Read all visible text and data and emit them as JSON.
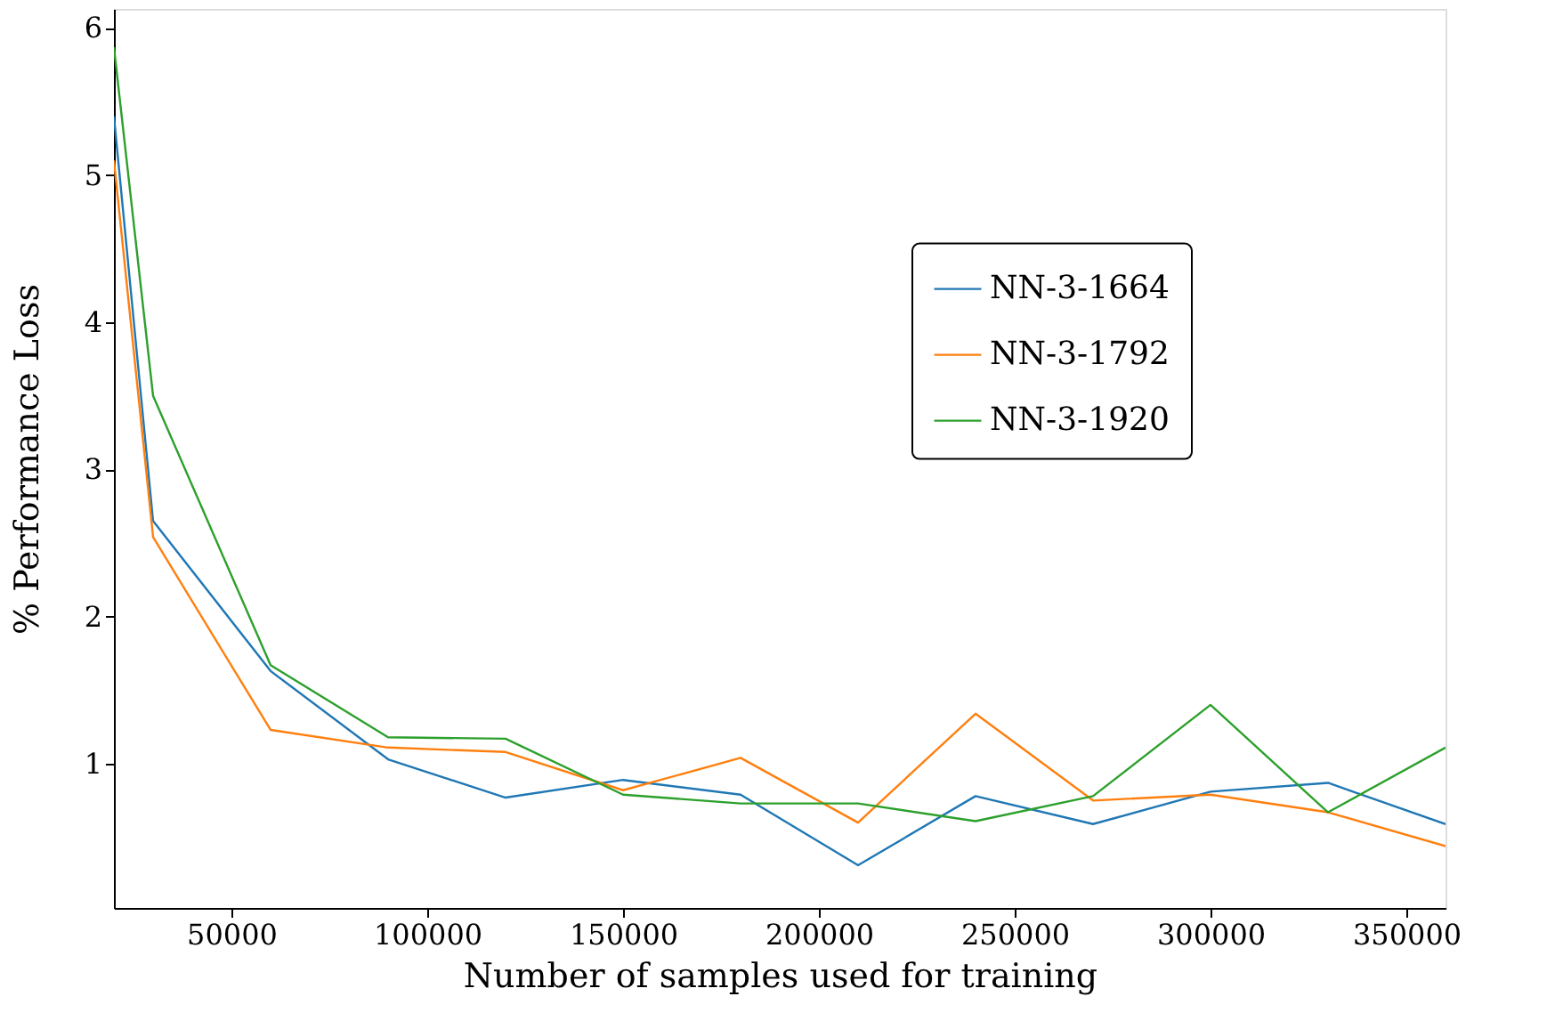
{
  "chart_data": {
    "type": "line",
    "xlabel": "Number of samples used for training",
    "ylabel": "% Performance Loss",
    "x": [
      20000,
      30000,
      60000,
      90000,
      120000,
      150000,
      180000,
      210000,
      240000,
      270000,
      300000,
      330000,
      360000
    ],
    "series": [
      {
        "name": "NN-3-1664",
        "color": "#1f77b4",
        "values": [
          5.4,
          2.65,
          1.63,
          1.03,
          0.77,
          0.89,
          0.79,
          0.31,
          0.78,
          0.59,
          0.81,
          0.87,
          0.59
        ]
      },
      {
        "name": "NN-3-1792",
        "color": "#ff7f0e",
        "values": [
          5.1,
          2.54,
          1.23,
          1.11,
          1.08,
          0.82,
          1.04,
          0.6,
          1.34,
          0.75,
          0.79,
          0.67,
          0.44
        ]
      },
      {
        "name": "NN-3-1920",
        "color": "#2ca02c",
        "values": [
          5.87,
          3.5,
          1.67,
          1.18,
          1.17,
          0.79,
          0.73,
          0.73,
          0.61,
          0.78,
          1.4,
          0.67,
          1.11
        ]
      }
    ],
    "xlim": [
      20000,
      360000
    ],
    "ylim": [
      0.02,
      6.13
    ],
    "xticks": [
      50000,
      100000,
      150000,
      200000,
      250000,
      300000,
      350000
    ],
    "yticks": [
      1,
      2,
      3,
      4,
      5,
      6
    ],
    "grid": false,
    "legend": "right",
    "marker": "none",
    "line_style": "solid"
  }
}
